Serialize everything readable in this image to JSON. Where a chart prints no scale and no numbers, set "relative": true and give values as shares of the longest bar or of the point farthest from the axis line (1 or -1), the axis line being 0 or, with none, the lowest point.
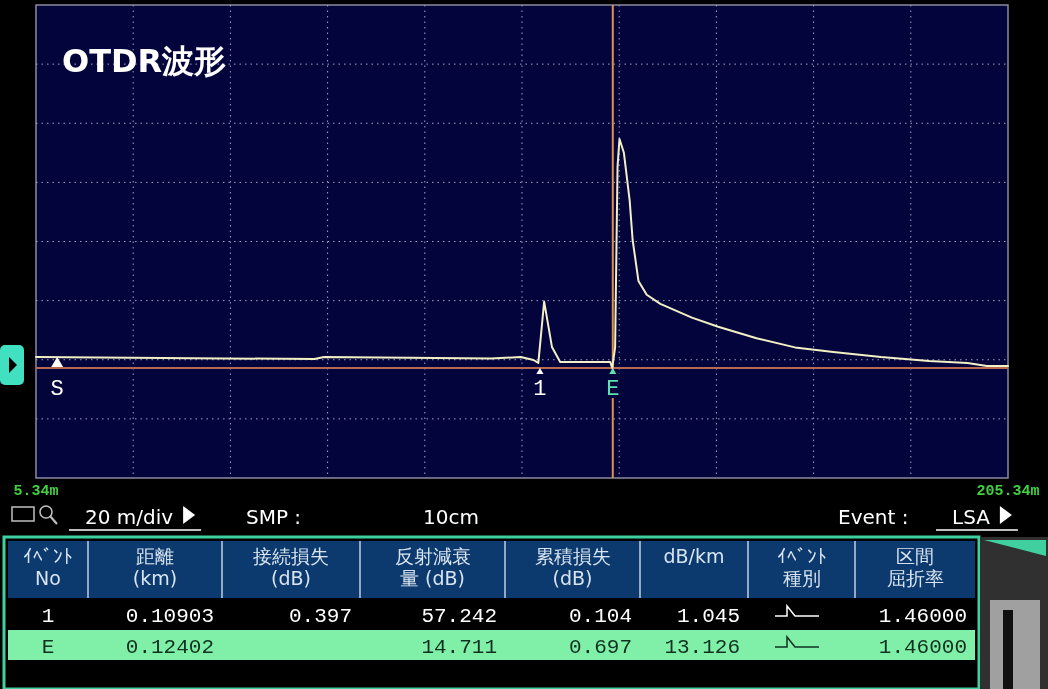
{
  "chart_data": {
    "type": "line",
    "title": "OTDR波形",
    "relative": true,
    "color": "#f2f0c4",
    "marker": "none",
    "line_style": "solid",
    "grid": true,
    "x": [
      5.34,
      62.65,
      64.63,
      99.0,
      105.1,
      107.7,
      108.7,
      109.9,
      111.5,
      113.2,
      123.5,
      123.9,
      124.5,
      125.0,
      125.4,
      126.3,
      127.5,
      128.1,
      129.3,
      131.0,
      133.8,
      140.3,
      145.7,
      153.6,
      161.5,
      169.4,
      179.2,
      189.1,
      197.0,
      201.0,
      205.34
    ],
    "values": [
      0.048,
      0.039,
      0.048,
      0.041,
      0.048,
      0.035,
      0.022,
      0.29,
      0.092,
      0.026,
      0.026,
      0.0,
      0.09,
      0.88,
      1.0,
      0.94,
      0.73,
      0.56,
      0.38,
      0.32,
      0.28,
      0.22,
      0.18,
      0.13,
      0.09,
      0.07,
      0.048,
      0.031,
      0.022,
      0.009,
      0.009
    ],
    "xlim": [
      5.34,
      205.34
    ],
    "xticks": [
      {
        "value": 5.34,
        "label": "5.34m"
      },
      {
        "value": 25.34,
        "label": null
      },
      {
        "value": 45.34,
        "label": null
      },
      {
        "value": 65.34,
        "label": null
      },
      {
        "value": 85.34,
        "label": null
      },
      {
        "value": 105.34,
        "label": null
      },
      {
        "value": 125.34,
        "label": null
      },
      {
        "value": 145.34,
        "label": null
      },
      {
        "value": 165.34,
        "label": null
      },
      {
        "value": 185.34,
        "label": null
      },
      {
        "value": 205.34,
        "label": "205.34m"
      }
    ],
    "ref_lines": [
      {
        "axis": "x",
        "value": 124.02,
        "color": "#e0904a"
      }
    ],
    "annotations": [
      "20 m/div",
      "SMP :",
      "10cm",
      "Event :",
      "LSA",
      "ｲﾍﾞﾝﾄ",
      "No",
      "距離",
      "(km)",
      "接続損失",
      "(dB)",
      "反射減衰",
      "量 (dB)",
      "累積損失",
      "(dB)",
      "dB/km",
      "ｲﾍﾞﾝﾄ",
      "種別",
      "区間",
      "屈折率",
      "1",
      "0.10903",
      "0.397",
      "57.242",
      "0.104",
      "1.045",
      "1.46000",
      "E",
      "0.12402",
      "14.711",
      "0.697",
      "13.126",
      "1.46000",
      {
        "text": "S",
        "x": 9.7,
        "y": 0.048
      },
      {
        "text": "1",
        "x": 109.03,
        "y": 0
      },
      {
        "text": "E",
        "x": 124.02,
        "y": 0
      }
    ]
  }
}
